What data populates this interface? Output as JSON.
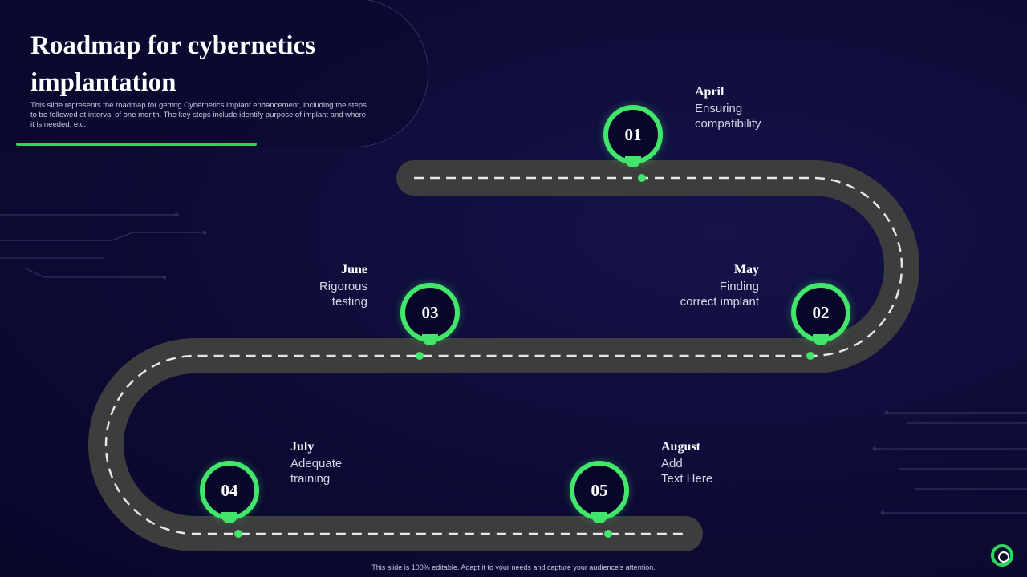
{
  "slide": {
    "title": "Roadmap for cybernetics implantation",
    "description": "This slide represents the roadmap for getting Cybernetics implant enhancement, including the steps to be followed at interval of one month. The key steps include identify purpose of implant and where it is needed, etc.",
    "footer": "This slide is 100% editable. Adapt it to your needs and capture your audience's attention."
  },
  "milestones": [
    {
      "number": "01",
      "month": "April",
      "text": "Ensuring\ncompatibility"
    },
    {
      "number": "02",
      "month": "May",
      "text": "Finding\ncorrect implant"
    },
    {
      "number": "03",
      "month": "June",
      "text": "Rigorous\ntesting"
    },
    {
      "number": "04",
      "month": "July",
      "text": "Adequate\ntraining"
    },
    {
      "number": "05",
      "month": "August",
      "text": "Add\nText Here"
    }
  ],
  "colors": {
    "background": "#0d0b35",
    "road": "#3d3d3d",
    "accent": "#41e66a",
    "dash": "#e6e6e6"
  },
  "icons": {
    "logo": "brand-ring-logo"
  }
}
